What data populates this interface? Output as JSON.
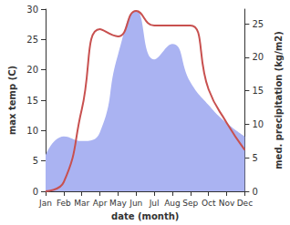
{
  "chart_data": {
    "type": "line",
    "categories": [
      "Jan",
      "Feb",
      "Mar",
      "Apr",
      "May",
      "Jun",
      "Jul",
      "Aug",
      "Sep",
      "Oct",
      "Nov",
      "Dec"
    ],
    "xlabel": "date (month)",
    "ylabel": "max temp (C)",
    "y2label": "med. precipitation (kg/m2)",
    "ylim": [
      0,
      30
    ],
    "yticks": [
      0,
      5,
      10,
      15,
      20,
      25,
      30
    ],
    "y2lim": [
      0,
      27.2
    ],
    "y2ticks": [
      0,
      5,
      10,
      15,
      20,
      25
    ],
    "grid": false,
    "series": [
      {
        "type": "area",
        "axis": "y2",
        "color": "#aab3f2",
        "values": [
          5.4,
          8.2,
          7.5,
          8.8,
          20.4,
          27,
          19.7,
          22,
          16.3,
          12.9,
          10.2,
          8.2
        ]
      },
      {
        "type": "line",
        "axis": "y",
        "color": "#c8504f",
        "values": [
          0,
          1.5,
          13.5,
          26.7,
          25.5,
          29.7,
          27.3,
          27.3,
          27.3,
          16.8,
          11.3,
          6.8
        ]
      }
    ]
  }
}
